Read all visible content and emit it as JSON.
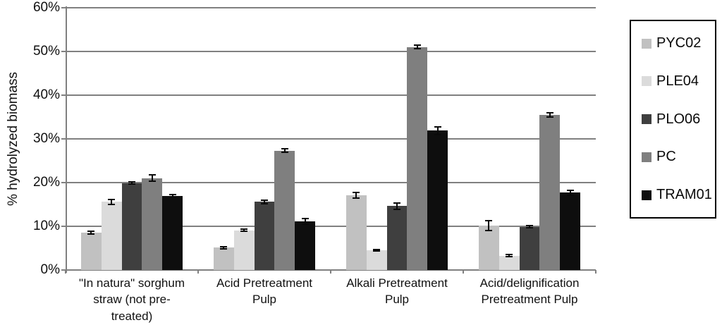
{
  "chart_data": {
    "type": "bar",
    "title": "",
    "xlabel": "",
    "ylabel": "% hydrolyzed biomass",
    "ylim": [
      0,
      60
    ],
    "ytick_step": 10,
    "ytick_labels": [
      "0%",
      "10%",
      "20%",
      "30%",
      "40%",
      "50%",
      "60%"
    ],
    "grid": true,
    "error_bars": true,
    "legend_position": "right-outside-boxed",
    "categories": [
      "\"In natura\" sorghum straw (not pre-treated)",
      "Acid Pretreatment Pulp",
      "Alkali Pretreatment Pulp",
      "Acid/delignification Pretreatment Pulp"
    ],
    "series": [
      {
        "name": "PYC02",
        "color": "#c1c1c1",
        "values": [
          8.5,
          5.1,
          17.1,
          10.2
        ],
        "errors": [
          0.3,
          0.3,
          0.6,
          1.1
        ]
      },
      {
        "name": "PLE04",
        "color": "#dbdbdb",
        "values": [
          15.6,
          9.1,
          4.5,
          3.3
        ],
        "errors": [
          0.6,
          0.3,
          0.2,
          0.2
        ]
      },
      {
        "name": "PLO06",
        "color": "#3f3f3f",
        "values": [
          19.9,
          15.6,
          14.6,
          9.9
        ],
        "errors": [
          0.3,
          0.4,
          0.7,
          0.3
        ]
      },
      {
        "name": "PC",
        "color": "#7f7f7f",
        "values": [
          21.0,
          27.3,
          51.0,
          35.5
        ],
        "errors": [
          0.7,
          0.4,
          0.4,
          0.5
        ]
      },
      {
        "name": "TRAM01",
        "color": "#0e0e0e",
        "values": [
          17.0,
          11.1,
          31.9,
          17.7
        ],
        "errors": [
          0.3,
          0.6,
          0.9,
          0.6
        ]
      }
    ],
    "axis_color": "#808080",
    "text_color": "#111111"
  }
}
